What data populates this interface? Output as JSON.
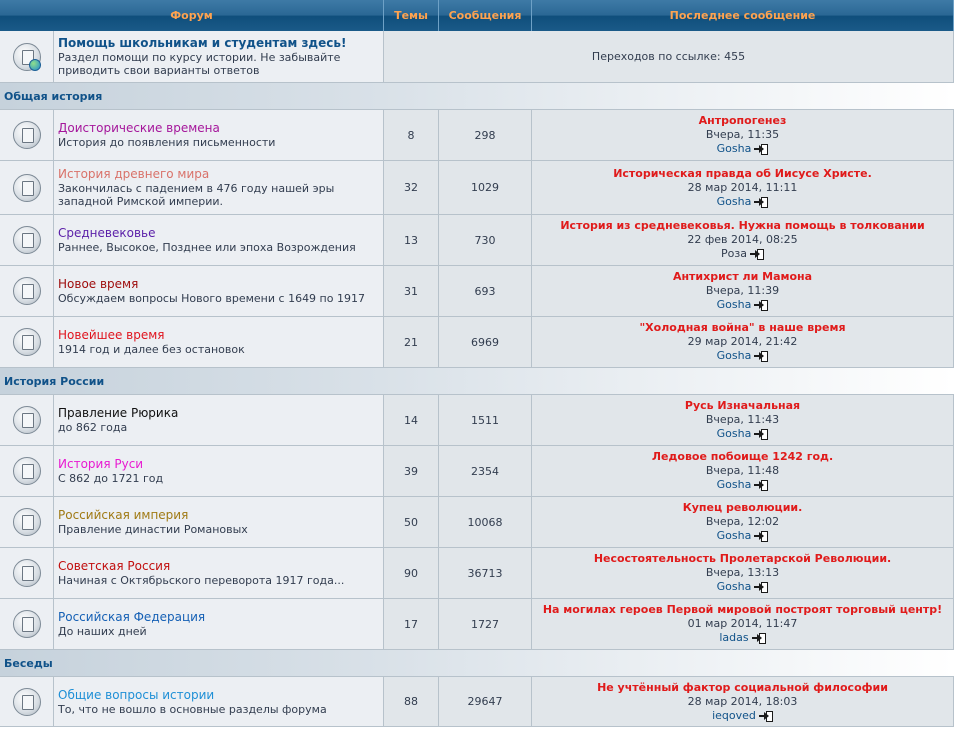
{
  "colors": {
    "header_text": "#ffa34f",
    "category_text": "#105289",
    "last_post_title": "#e01b1b"
  },
  "headers": {
    "forum": "Форум",
    "topics": "Темы",
    "posts": "Сообщения",
    "last_post": "Последнее сообщение"
  },
  "redirect": {
    "title": "Помощь школьникам и студентам здесь!",
    "title_color": "#105289",
    "desc": "Раздел помощи по курсу истории. Не забывайте приводить свои варианты ответов",
    "clicks": "Переходов по ссылке: 455"
  },
  "sections": [
    {
      "name": "Общая история",
      "forums": [
        {
          "title": "Доисторические времена",
          "color": "#a5169b",
          "desc": "История до появления письменности",
          "topics": "8",
          "posts": "298",
          "last": {
            "title": "Антропогенез",
            "date": "Вчера, 11:35",
            "user": "Gosha"
          }
        },
        {
          "title": "История древнего мира",
          "color": "#d9726a",
          "desc": "Закончилась с падением в 476 году нашей эры западной Римской империи.",
          "topics": "32",
          "posts": "1029",
          "last": {
            "title": "Историческая правда об Иисусе Христе.",
            "date": "28 мар 2014, 11:11",
            "user": "Gosha"
          }
        },
        {
          "title": "Средневековье",
          "color": "#5a1ea8",
          "desc": "Раннее, Высокое, Позднее или эпоха Возрождения",
          "topics": "13",
          "posts": "730",
          "last": {
            "title": "История из средневековья. Нужна помощь в толковании",
            "date": "22 фев 2014, 08:25",
            "user": "Роза"
          }
        },
        {
          "title": "Новое время",
          "color": "#9e0b0b",
          "desc": "Обсуждаем вопросы Нового времени с 1649 по 1917",
          "topics": "31",
          "posts": "693",
          "last": {
            "title": "Антихрист ли Мамона",
            "date": "Вчера, 11:39",
            "user": "Gosha"
          }
        },
        {
          "title": "Новейшее время",
          "color": "#e0141e",
          "desc": "1914 год и далее без остановок",
          "topics": "21",
          "posts": "6969",
          "last": {
            "title": "\"Холодная война\" в наше время",
            "date": "29 мар 2014, 21:42",
            "user": "Gosha"
          }
        }
      ]
    },
    {
      "name": "История России",
      "forums": [
        {
          "title": "Правление Рюрика",
          "color": "#111111",
          "desc": "до 862 года",
          "topics": "14",
          "posts": "1511",
          "last": {
            "title": "Русь Изначальная",
            "date": "Вчера, 11:43",
            "user": "Gosha"
          }
        },
        {
          "title": "История Руси",
          "color": "#e81bd1",
          "desc": "С 862 до 1721 год",
          "topics": "39",
          "posts": "2354",
          "last": {
            "title": "Ледовое побоище 1242 год.",
            "date": "Вчера, 11:48",
            "user": "Gosha"
          }
        },
        {
          "title": "Российская империя",
          "color": "#a07a14",
          "desc": "Правление династии Романовых",
          "topics": "50",
          "posts": "10068",
          "last": {
            "title": "Купец революции.",
            "date": "Вчера, 12:02",
            "user": "Gosha"
          }
        },
        {
          "title": "Советская Россия",
          "color": "#c10e0e",
          "desc": "Начиная с Октябрьского переворота 1917 года...",
          "topics": "90",
          "posts": "36713",
          "last": {
            "title": "Несостоятельность Пролетарской Революции.",
            "date": "Вчера, 13:13",
            "user": "Gosha"
          }
        },
        {
          "title": "Российская Федерация",
          "color": "#1560b5",
          "desc": "До наших дней",
          "topics": "17",
          "posts": "1727",
          "last": {
            "title": "На могилах героев Первой мировой построят торговый центр!",
            "date": "01 мар 2014, 11:47",
            "user": "ladas"
          }
        }
      ]
    },
    {
      "name": "Беседы",
      "forums": [
        {
          "title": "Общие вопросы истории",
          "color": "#1e8fd6",
          "desc": "То, что не вошло в основные разделы форума",
          "topics": "88",
          "posts": "29647",
          "last": {
            "title": "Не учтённый фактор социальной философии",
            "date": "28 мар 2014, 18:03",
            "user": "ieqoved"
          }
        }
      ]
    }
  ]
}
